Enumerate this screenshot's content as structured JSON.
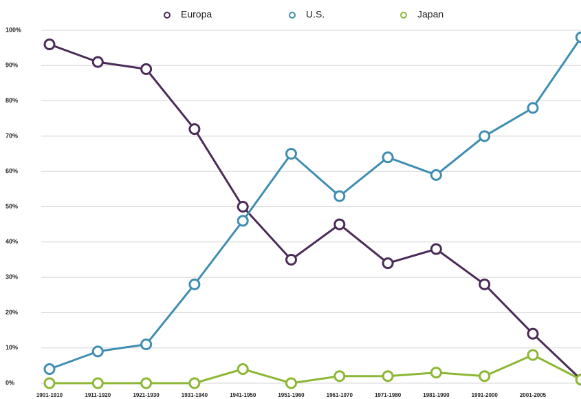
{
  "chart_data": {
    "type": "line",
    "categories": [
      "1901-1910",
      "1911-1920",
      "1921-1930",
      "1931-1940",
      "1941-1950",
      "1951-1960",
      "1961-1970",
      "1971-1980",
      "1981-1990",
      "1991-2000",
      "2001-2005",
      null
    ],
    "series": [
      {
        "name": "Europa",
        "color": "#4b2b57",
        "values": [
          96,
          91,
          89,
          72,
          50,
          35,
          45,
          34,
          38,
          28,
          14,
          1
        ]
      },
      {
        "name": "U.S.",
        "color": "#3f8eb1",
        "values": [
          4,
          9,
          11,
          28,
          46,
          65,
          53,
          64,
          59,
          70,
          78,
          98
        ]
      },
      {
        "name": "Japan",
        "color": "#8cb735",
        "values": [
          0,
          0,
          0,
          0,
          4,
          0,
          2,
          2,
          3,
          2,
          8,
          1
        ]
      }
    ],
    "ylim": [
      0,
      100
    ],
    "yticks": [
      {
        "value": 0,
        "label": "0%"
      },
      {
        "value": 10,
        "label": "10%"
      },
      {
        "value": 20,
        "label": "20%"
      },
      {
        "value": 30,
        "label": "30%"
      },
      {
        "value": 40,
        "label": "40%"
      },
      {
        "value": 50,
        "label": "50%"
      },
      {
        "value": 60,
        "label": "60%"
      },
      {
        "value": 70,
        "label": "70%"
      },
      {
        "value": 80,
        "label": "80%"
      },
      {
        "value": 90,
        "label": "90%"
      },
      {
        "value": 100,
        "label": "100%"
      }
    ],
    "grid": true,
    "legend": "top"
  }
}
